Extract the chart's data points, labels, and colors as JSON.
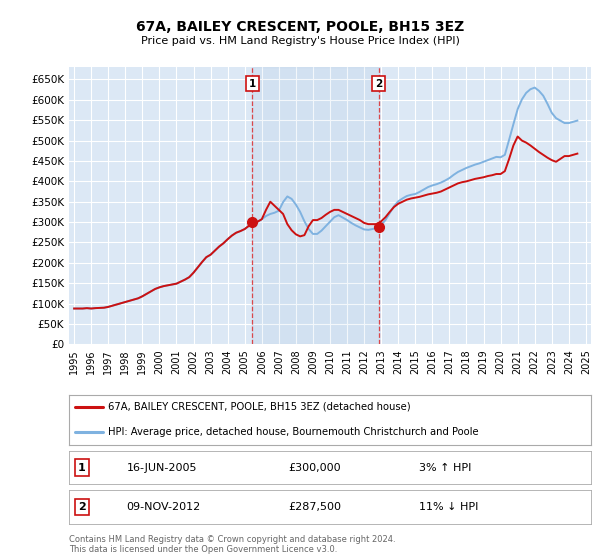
{
  "title": "67A, BAILEY CRESCENT, POOLE, BH15 3EZ",
  "subtitle": "Price paid vs. HM Land Registry's House Price Index (HPI)",
  "ylabel_ticks": [
    "£0",
    "£50K",
    "£100K",
    "£150K",
    "£200K",
    "£250K",
    "£300K",
    "£350K",
    "£400K",
    "£450K",
    "£500K",
    "£550K",
    "£600K",
    "£650K"
  ],
  "ytick_values": [
    0,
    50000,
    100000,
    150000,
    200000,
    250000,
    300000,
    350000,
    400000,
    450000,
    500000,
    550000,
    600000,
    650000
  ],
  "ylim": [
    0,
    680000
  ],
  "xlim_start": 1994.7,
  "xlim_end": 2025.3,
  "plot_bg_color": "#dce8f5",
  "grid_color": "#ffffff",
  "hpi_line_color": "#7fb2e0",
  "price_line_color": "#cc1111",
  "sale1_x": 2005.45,
  "sale1_y": 300000,
  "sale2_x": 2012.85,
  "sale2_y": 287500,
  "legend_line1": "67A, BAILEY CRESCENT, POOLE, BH15 3EZ (detached house)",
  "legend_line2": "HPI: Average price, detached house, Bournemouth Christchurch and Poole",
  "table_row1": [
    "1",
    "16-JUN-2005",
    "£300,000",
    "3% ↑ HPI"
  ],
  "table_row2": [
    "2",
    "09-NOV-2012",
    "£287,500",
    "11% ↓ HPI"
  ],
  "footnote": "Contains HM Land Registry data © Crown copyright and database right 2024.\nThis data is licensed under the Open Government Licence v3.0.",
  "hpi_data_x": [
    1995.0,
    1995.25,
    1995.5,
    1995.75,
    1996.0,
    1996.25,
    1996.5,
    1996.75,
    1997.0,
    1997.25,
    1997.5,
    1997.75,
    1998.0,
    1998.25,
    1998.5,
    1998.75,
    1999.0,
    1999.25,
    1999.5,
    1999.75,
    2000.0,
    2000.25,
    2000.5,
    2000.75,
    2001.0,
    2001.25,
    2001.5,
    2001.75,
    2002.0,
    2002.25,
    2002.5,
    2002.75,
    2003.0,
    2003.25,
    2003.5,
    2003.75,
    2004.0,
    2004.25,
    2004.5,
    2004.75,
    2005.0,
    2005.25,
    2005.5,
    2005.75,
    2006.0,
    2006.25,
    2006.5,
    2006.75,
    2007.0,
    2007.25,
    2007.5,
    2007.75,
    2008.0,
    2008.25,
    2008.5,
    2008.75,
    2009.0,
    2009.25,
    2009.5,
    2009.75,
    2010.0,
    2010.25,
    2010.5,
    2010.75,
    2011.0,
    2011.25,
    2011.5,
    2011.75,
    2012.0,
    2012.25,
    2012.5,
    2012.75,
    2013.0,
    2013.25,
    2013.5,
    2013.75,
    2014.0,
    2014.25,
    2014.5,
    2014.75,
    2015.0,
    2015.25,
    2015.5,
    2015.75,
    2016.0,
    2016.25,
    2016.5,
    2016.75,
    2017.0,
    2017.25,
    2017.5,
    2017.75,
    2018.0,
    2018.25,
    2018.5,
    2018.75,
    2019.0,
    2019.25,
    2019.5,
    2019.75,
    2020.0,
    2020.25,
    2020.5,
    2020.75,
    2021.0,
    2021.25,
    2021.5,
    2021.75,
    2022.0,
    2022.25,
    2022.5,
    2022.75,
    2023.0,
    2023.25,
    2023.5,
    2023.75,
    2024.0,
    2024.25,
    2024.5
  ],
  "hpi_data_y": [
    88000,
    88000,
    88000,
    89000,
    88000,
    89000,
    89500,
    90000,
    92000,
    95000,
    98000,
    101000,
    104000,
    107000,
    110000,
    113000,
    118000,
    124000,
    130000,
    136000,
    140000,
    143000,
    145000,
    147000,
    149000,
    154000,
    159000,
    165000,
    176000,
    189000,
    202000,
    214000,
    220000,
    230000,
    240000,
    248000,
    258000,
    267000,
    274000,
    278000,
    283000,
    291000,
    297000,
    301000,
    307000,
    315000,
    320000,
    323000,
    328000,
    349000,
    363000,
    357000,
    343000,
    325000,
    302000,
    283000,
    271000,
    271000,
    279000,
    290000,
    301000,
    312000,
    317000,
    311000,
    305000,
    298000,
    292000,
    287000,
    282000,
    281000,
    283000,
    286000,
    293000,
    305000,
    322000,
    339000,
    351000,
    358000,
    364000,
    367000,
    369000,
    374000,
    380000,
    386000,
    390000,
    393000,
    397000,
    402000,
    408000,
    416000,
    423000,
    428000,
    433000,
    437000,
    441000,
    444000,
    448000,
    452000,
    456000,
    460000,
    459000,
    465000,
    502000,
    540000,
    577000,
    601000,
    617000,
    626000,
    630000,
    622000,
    610000,
    590000,
    568000,
    555000,
    549000,
    543000,
    543000,
    546000,
    549000
  ],
  "price_data_x": [
    1995.0,
    1995.25,
    1995.5,
    1995.75,
    1996.0,
    1996.25,
    1996.5,
    1996.75,
    1997.0,
    1997.25,
    1997.5,
    1997.75,
    1998.0,
    1998.25,
    1998.5,
    1998.75,
    1999.0,
    1999.25,
    1999.5,
    1999.75,
    2000.0,
    2000.25,
    2000.5,
    2000.75,
    2001.0,
    2001.25,
    2001.5,
    2001.75,
    2002.0,
    2002.25,
    2002.5,
    2002.75,
    2003.0,
    2003.25,
    2003.5,
    2003.75,
    2004.0,
    2004.25,
    2004.5,
    2004.75,
    2005.0,
    2005.25,
    2005.5,
    2005.75,
    2006.0,
    2006.25,
    2006.5,
    2006.75,
    2007.0,
    2007.25,
    2007.5,
    2007.75,
    2008.0,
    2008.25,
    2008.5,
    2008.75,
    2009.0,
    2009.25,
    2009.5,
    2009.75,
    2010.0,
    2010.25,
    2010.5,
    2010.75,
    2011.0,
    2011.25,
    2011.5,
    2011.75,
    2012.0,
    2012.25,
    2012.5,
    2012.75,
    2013.0,
    2013.25,
    2013.5,
    2013.75,
    2014.0,
    2014.25,
    2014.5,
    2014.75,
    2015.0,
    2015.25,
    2015.5,
    2015.75,
    2016.0,
    2016.25,
    2016.5,
    2016.75,
    2017.0,
    2017.25,
    2017.5,
    2017.75,
    2018.0,
    2018.25,
    2018.5,
    2018.75,
    2019.0,
    2019.25,
    2019.5,
    2019.75,
    2020.0,
    2020.25,
    2020.5,
    2020.75,
    2021.0,
    2021.25,
    2021.5,
    2021.75,
    2022.0,
    2022.25,
    2022.5,
    2022.75,
    2023.0,
    2023.25,
    2023.5,
    2023.75,
    2024.0,
    2024.25,
    2024.5
  ],
  "price_data_y": [
    88000,
    88000,
    88000,
    89000,
    88000,
    89000,
    89500,
    90000,
    92000,
    95000,
    98000,
    101000,
    104000,
    107000,
    110000,
    113000,
    118000,
    124000,
    130000,
    136000,
    140000,
    143000,
    145000,
    147000,
    149000,
    154000,
    159000,
    165000,
    176000,
    189000,
    202000,
    214000,
    220000,
    230000,
    240000,
    248000,
    258000,
    267000,
    274000,
    278000,
    283000,
    291000,
    297000,
    301000,
    307000,
    330000,
    350000,
    340000,
    330000,
    320000,
    295000,
    280000,
    270000,
    265000,
    268000,
    290000,
    305000,
    305000,
    310000,
    318000,
    325000,
    330000,
    330000,
    325000,
    320000,
    315000,
    310000,
    305000,
    298000,
    295000,
    295000,
    295000,
    302000,
    312000,
    325000,
    337000,
    345000,
    350000,
    355000,
    358000,
    360000,
    362000,
    365000,
    368000,
    370000,
    372000,
    375000,
    380000,
    385000,
    390000,
    395000,
    398000,
    400000,
    403000,
    406000,
    408000,
    410000,
    413000,
    415000,
    418000,
    418000,
    425000,
    455000,
    488000,
    510000,
    500000,
    495000,
    488000,
    480000,
    472000,
    465000,
    458000,
    452000,
    448000,
    455000,
    462000,
    462000,
    465000,
    468000
  ]
}
